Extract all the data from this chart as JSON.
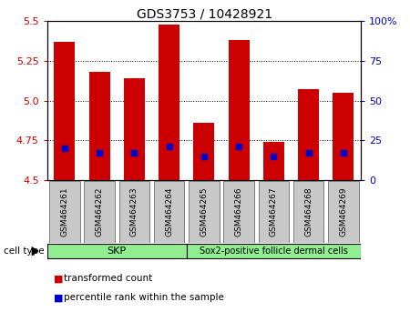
{
  "title": "GDS3753 / 10428921",
  "samples": [
    "GSM464261",
    "GSM464262",
    "GSM464263",
    "GSM464264",
    "GSM464265",
    "GSM464266",
    "GSM464267",
    "GSM464268",
    "GSM464269"
  ],
  "transformed_counts": [
    5.37,
    5.18,
    5.14,
    5.48,
    4.86,
    5.38,
    4.74,
    5.07,
    5.05
  ],
  "percentile_ranks": [
    4.7,
    4.67,
    4.67,
    4.71,
    4.65,
    4.71,
    4.65,
    4.67,
    4.67
  ],
  "ylim": [
    4.5,
    5.5
  ],
  "yticks": [
    4.5,
    4.75,
    5.0,
    5.25,
    5.5
  ],
  "right_tick_positions": [
    4.5,
    4.75,
    5.0,
    5.25,
    5.5
  ],
  "right_tick_labels": [
    "0",
    "25",
    "50",
    "75",
    "100%"
  ],
  "bar_color": "#cc0000",
  "marker_color": "#0000cc",
  "bg_color": "#ffffff",
  "plot_bg": "#ffffff",
  "grid_color": "#000000",
  "ytick_color": "#cc0000",
  "right_ytick_color": "#0000cc",
  "skp_color": "#90EE90",
  "sox_color": "#90EE90",
  "label_bg": "#c8c8c8",
  "cell_type_label": "cell type",
  "skp_label": "SKP",
  "sox_label": "Sox2-positive follicle dermal cells",
  "legend_items": [
    {
      "color": "#cc0000",
      "label": "transformed count"
    },
    {
      "color": "#0000cc",
      "label": "percentile rank within the sample"
    }
  ]
}
